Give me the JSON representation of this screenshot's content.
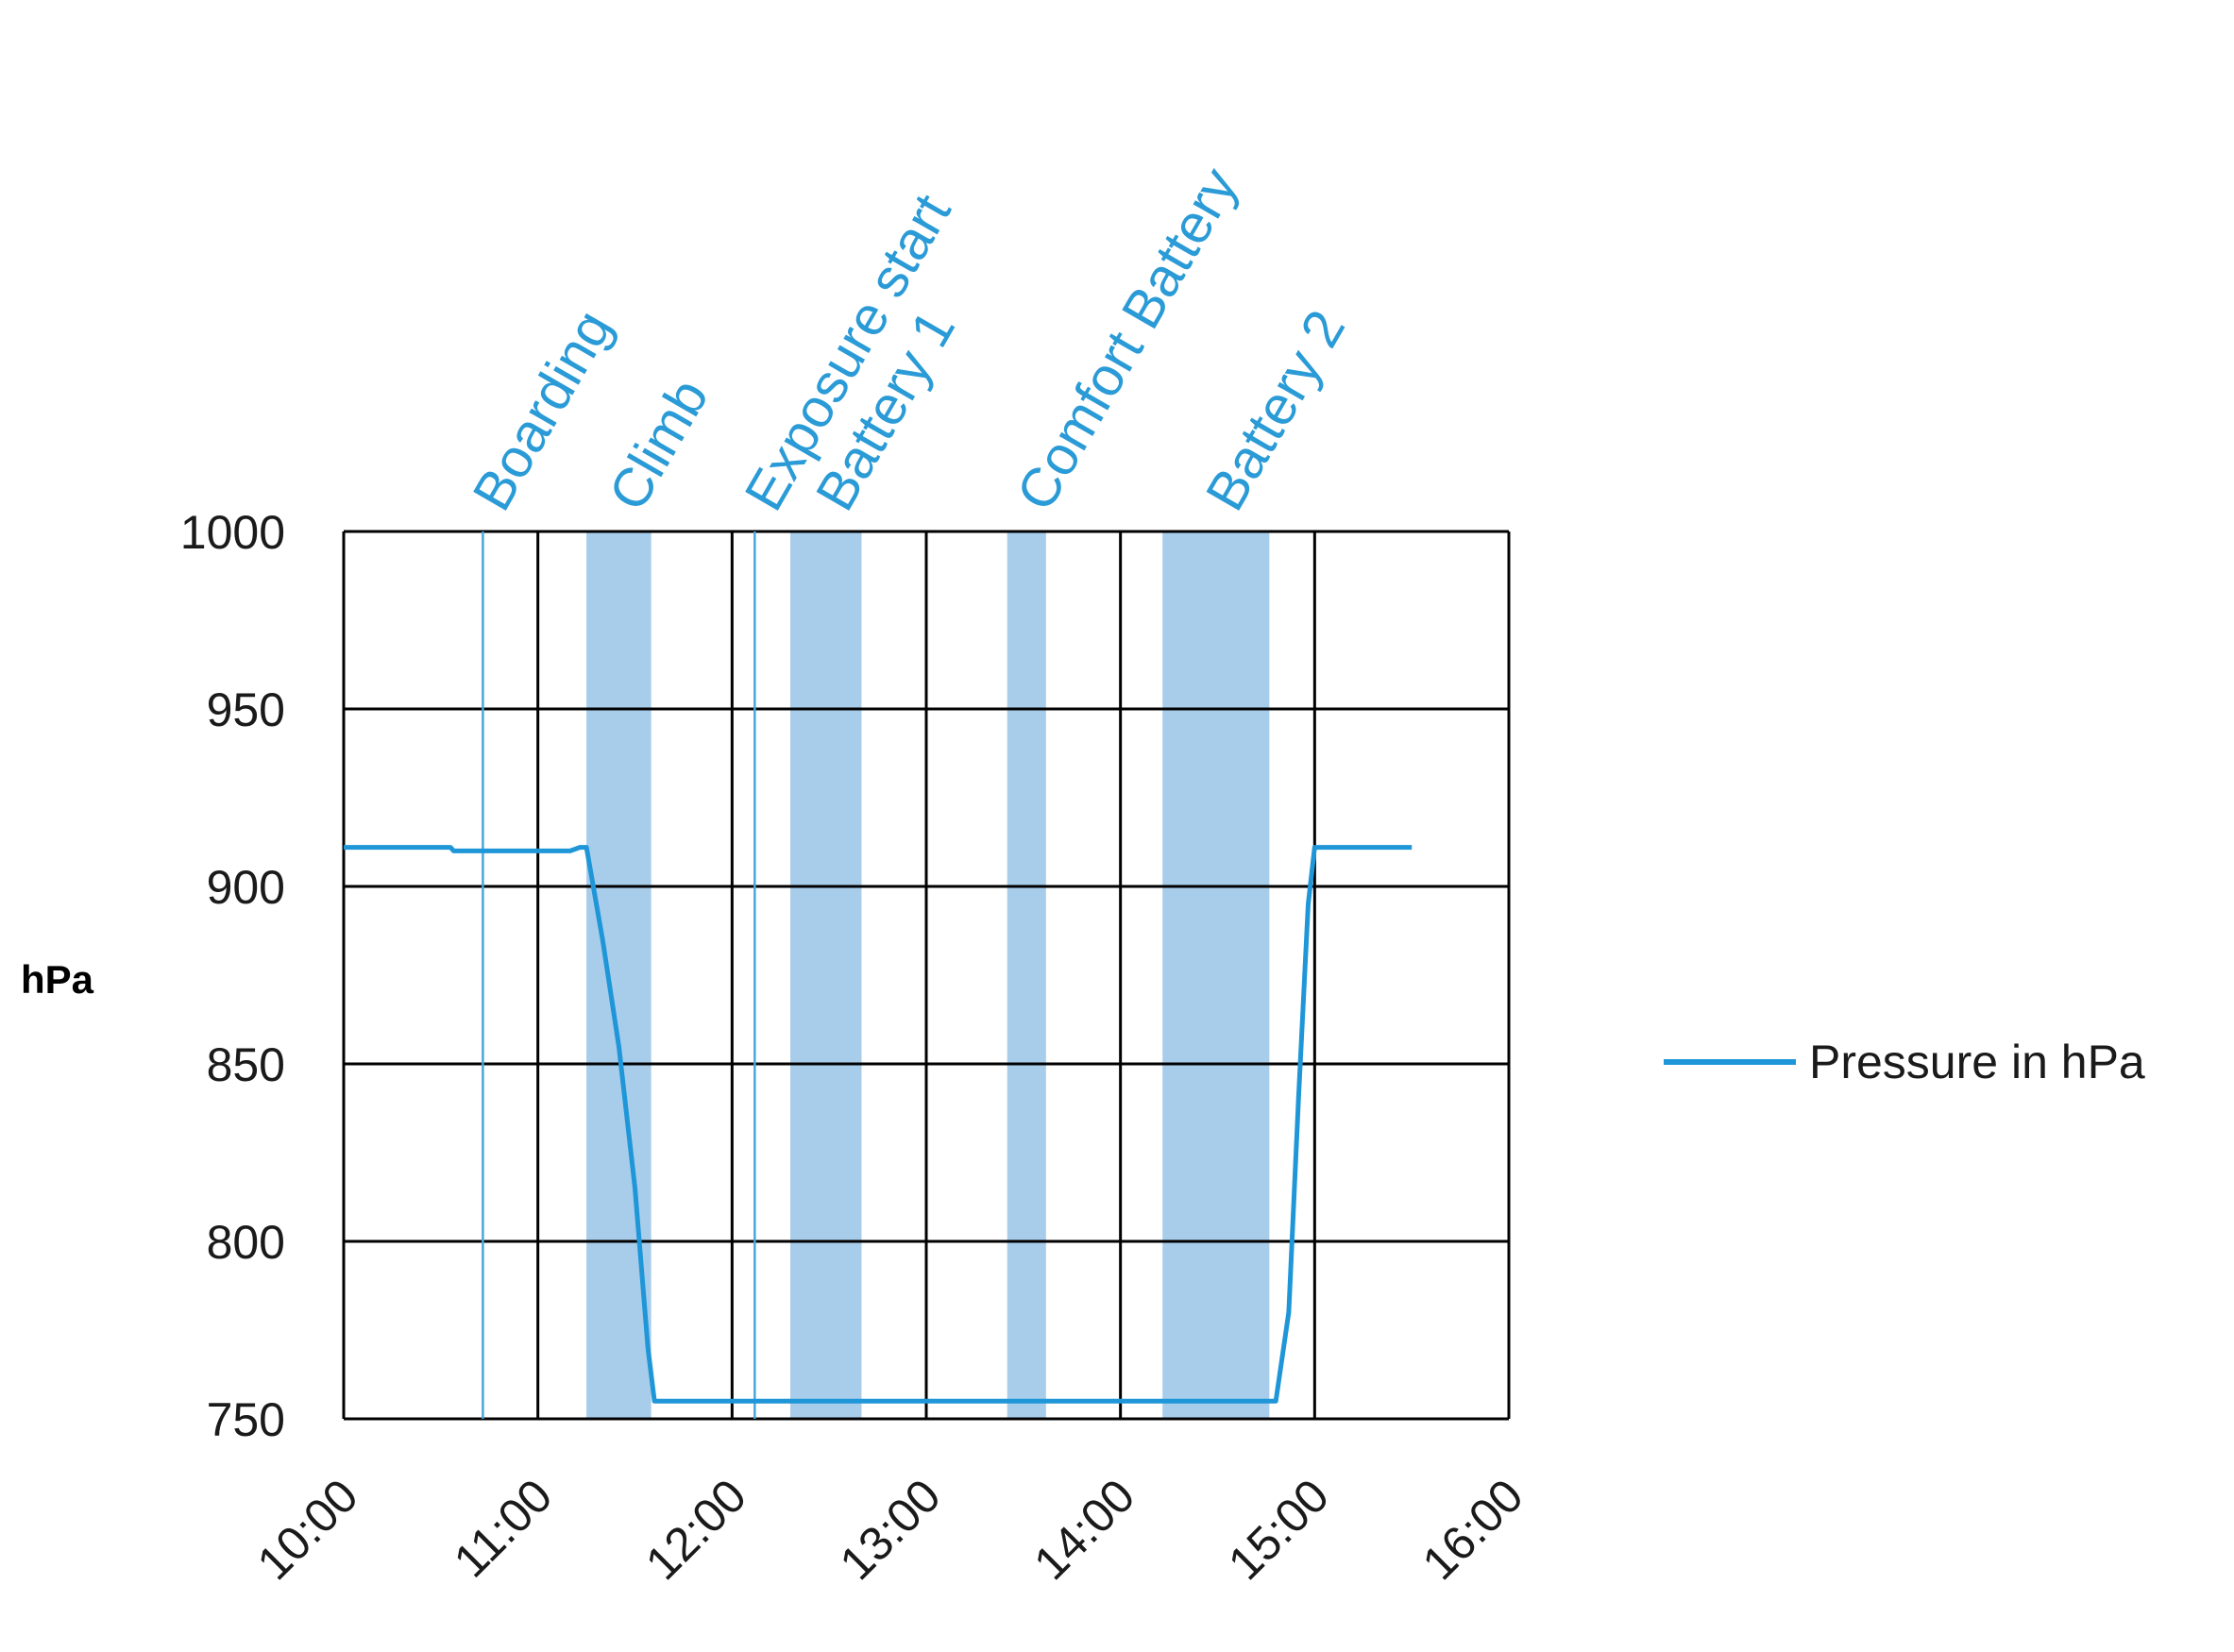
{
  "chart_data": {
    "type": "line",
    "ylabel": "hPa",
    "ylim": [
      750,
      1000
    ],
    "yticks": [
      "1000",
      "950",
      "900",
      "850",
      "800",
      "750"
    ],
    "xlim": [
      "10:00",
      "16:00"
    ],
    "xticks": [
      "10:00",
      "11:00",
      "12:00",
      "13:00",
      "14:00",
      "15:00",
      "16:00"
    ],
    "grid": true,
    "legend_position": "right",
    "colors": {
      "line": "#1f96d8",
      "band": "#a7cdeb",
      "marker": "#4aa6dc",
      "label": "#2a9bd6",
      "grid": "#000000"
    },
    "events": [
      {
        "label": "Boarding",
        "kind": "line",
        "time": "10:43"
      },
      {
        "label": "Climb",
        "kind": "band",
        "start": "11:15",
        "end": "11:35"
      },
      {
        "label": "Exposure start",
        "kind": "line",
        "time": "12:07"
      },
      {
        "label": "Battery 1",
        "kind": "band",
        "start": "12:18",
        "end": "12:40"
      },
      {
        "label": "Comfort Battery",
        "kind": "band",
        "start": "13:25",
        "end": "13:37"
      },
      {
        "label": "Battery 2",
        "kind": "band",
        "start": "14:13",
        "end": "14:46"
      }
    ],
    "series": [
      {
        "name": "Pressure in hPa",
        "points": [
          [
            "10:00",
            911
          ],
          [
            "10:33",
            911
          ],
          [
            "10:34",
            910
          ],
          [
            "11:00",
            910
          ],
          [
            "11:10",
            910
          ],
          [
            "11:13",
            911
          ],
          [
            "11:15",
            911
          ],
          [
            "11:20",
            885
          ],
          [
            "11:25",
            855
          ],
          [
            "11:30",
            815
          ],
          [
            "11:34",
            770
          ],
          [
            "11:36",
            755
          ],
          [
            "12:00",
            755
          ],
          [
            "12:30",
            755
          ],
          [
            "13:00",
            755
          ],
          [
            "13:30",
            755
          ],
          [
            "14:00",
            755
          ],
          [
            "14:30",
            755
          ],
          [
            "14:48",
            755
          ],
          [
            "14:52",
            780
          ],
          [
            "14:55",
            840
          ],
          [
            "14:58",
            895
          ],
          [
            "15:00",
            911
          ],
          [
            "15:30",
            911
          ]
        ]
      }
    ]
  }
}
